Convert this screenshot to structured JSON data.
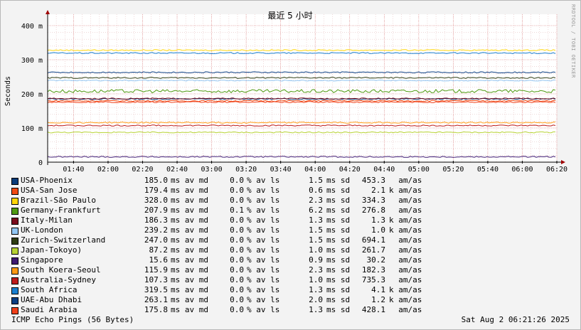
{
  "chart_data": {
    "type": "line",
    "title": "最近 5 小时",
    "ylabel": "Seconds",
    "ylim": [
      0,
      0.4
    ],
    "yticks": [
      {
        "value": 0,
        "label": "0"
      },
      {
        "value": 0.1,
        "label": "100 m"
      },
      {
        "value": 0.2,
        "label": "200 m"
      },
      {
        "value": 0.3,
        "label": "300 m"
      },
      {
        "value": 0.4,
        "label": "400 m"
      }
    ],
    "xlim": [
      "01:25",
      "06:20"
    ],
    "xticks": [
      "01:40",
      "02:00",
      "02:20",
      "02:40",
      "03:00",
      "03:20",
      "03:40",
      "04:00",
      "04:20",
      "04:40",
      "05:00",
      "05:20",
      "05:40",
      "06:00",
      "06:20"
    ],
    "grid": true,
    "series": [
      {
        "name": "USA-Phoenix",
        "color": "#0b3c7a",
        "value_ms": 185.0
      },
      {
        "name": "USA-San Jose",
        "color": "#f04a14",
        "value_ms": 179.4
      },
      {
        "name": "Brazil-São Paulo",
        "color": "#ffd60a",
        "value_ms": 328.0
      },
      {
        "name": "Germany-Frankfurt",
        "color": "#4f9a12",
        "value_ms": 207.9
      },
      {
        "name": "Italy-Milan",
        "color": "#7a0d1d",
        "value_ms": 186.3
      },
      {
        "name": "UK-London",
        "color": "#93c7f4",
        "value_ms": 239.2
      },
      {
        "name": "Zurich-Switzerland",
        "color": "#2f3d14",
        "value_ms": 247.0
      },
      {
        "name": "Japan-Tokoyo)",
        "color": "#b7d334",
        "value_ms": 87.2
      },
      {
        "name": "Singapore",
        "color": "#3f1a72",
        "value_ms": 15.6
      },
      {
        "name": "South Koera-Seoul",
        "color": "#ff9a14",
        "value_ms": 115.9
      },
      {
        "name": "Australia-Sydney",
        "color": "#be1c1c",
        "value_ms": 107.3
      },
      {
        "name": "South Africa",
        "color": "#1b7fcf",
        "value_ms": 319.5
      },
      {
        "name": "UAE-Abu Dhabi",
        "color": "#0d3f83",
        "value_ms": 263.1
      },
      {
        "name": "Saudi Arabia",
        "color": "#f0401a",
        "value_ms": 175.8
      }
    ]
  },
  "legend": [
    {
      "name": "USA-Phoenix",
      "avg": "185.0",
      "avg_u": "ms av md",
      "loss": "0.0",
      "loss_u": "% av ls",
      "sd": "1.5",
      "sd_u": "ms sd",
      "amas": "453.3",
      "amas_u": "  am/as"
    },
    {
      "name": "USA-San Jose",
      "avg": "179.4",
      "avg_u": "ms av md",
      "loss": "0.0",
      "loss_u": "% av ls",
      "sd": "0.6",
      "sd_u": "ms sd",
      "amas": "2.1",
      "amas_u": "k am/as"
    },
    {
      "name": "Brazil-São Paulo",
      "avg": "328.0",
      "avg_u": "ms av md",
      "loss": "0.0",
      "loss_u": "% av ls",
      "sd": "2.3",
      "sd_u": "ms sd",
      "amas": "334.3",
      "amas_u": "  am/as"
    },
    {
      "name": "Germany-Frankfurt",
      "avg": "207.9",
      "avg_u": "ms av md",
      "loss": "0.1",
      "loss_u": "% av ls",
      "sd": "6.2",
      "sd_u": "ms sd",
      "amas": "276.8",
      "amas_u": "  am/as"
    },
    {
      "name": "Italy-Milan",
      "avg": "186.3",
      "avg_u": "ms av md",
      "loss": "0.0",
      "loss_u": "% av ls",
      "sd": "1.3",
      "sd_u": "ms sd",
      "amas": "1.3",
      "amas_u": "k am/as"
    },
    {
      "name": "UK-London",
      "avg": "239.2",
      "avg_u": "ms av md",
      "loss": "0.0",
      "loss_u": "% av ls",
      "sd": "1.5",
      "sd_u": "ms sd",
      "amas": "1.0",
      "amas_u": "k am/as"
    },
    {
      "name": "Zurich-Switzerland",
      "avg": "247.0",
      "avg_u": "ms av md",
      "loss": "0.0",
      "loss_u": "% av ls",
      "sd": "1.5",
      "sd_u": "ms sd",
      "amas": "694.1",
      "amas_u": "  am/as"
    },
    {
      "name": "Japan-Tokoyo)",
      "avg": "87.2",
      "avg_u": "ms av md",
      "loss": "0.0",
      "loss_u": "% av ls",
      "sd": "1.0",
      "sd_u": "ms sd",
      "amas": "261.7",
      "amas_u": "  am/as"
    },
    {
      "name": "Singapore",
      "avg": "15.6",
      "avg_u": "ms av md",
      "loss": "0.0",
      "loss_u": "% av ls",
      "sd": "0.9",
      "sd_u": "ms sd",
      "amas": "30.2",
      "amas_u": "  am/as"
    },
    {
      "name": "South Koera-Seoul",
      "avg": "115.9",
      "avg_u": "ms av md",
      "loss": "0.0",
      "loss_u": "% av ls",
      "sd": "2.3",
      "sd_u": "ms sd",
      "amas": "182.3",
      "amas_u": "  am/as"
    },
    {
      "name": "Australia-Sydney",
      "avg": "107.3",
      "avg_u": "ms av md",
      "loss": "0.0",
      "loss_u": "% av ls",
      "sd": "1.0",
      "sd_u": "ms sd",
      "amas": "735.3",
      "amas_u": "  am/as"
    },
    {
      "name": "South Africa",
      "avg": "319.5",
      "avg_u": "ms av md",
      "loss": "0.0",
      "loss_u": "% av ls",
      "sd": "1.3",
      "sd_u": "ms sd",
      "amas": "4.1",
      "amas_u": "k am/as"
    },
    {
      "name": "UAE-Abu Dhabi",
      "avg": "263.1",
      "avg_u": "ms av md",
      "loss": "0.0",
      "loss_u": "% av ls",
      "sd": "2.0",
      "sd_u": "ms sd",
      "amas": "1.2",
      "amas_u": "k am/as"
    },
    {
      "name": "Saudi Arabia",
      "avg": "175.8",
      "avg_u": "ms av md",
      "loss": "0.0",
      "loss_u": "% av ls",
      "sd": "1.3",
      "sd_u": "ms sd",
      "amas": "428.1",
      "amas_u": "  am/as"
    }
  ],
  "footer": {
    "left": "ICMP Echo Pings (56 Bytes)",
    "right": "Sat Aug  2 06:21:26 2025"
  },
  "watermark": "RRDTOOL / TOBI OETIKER"
}
